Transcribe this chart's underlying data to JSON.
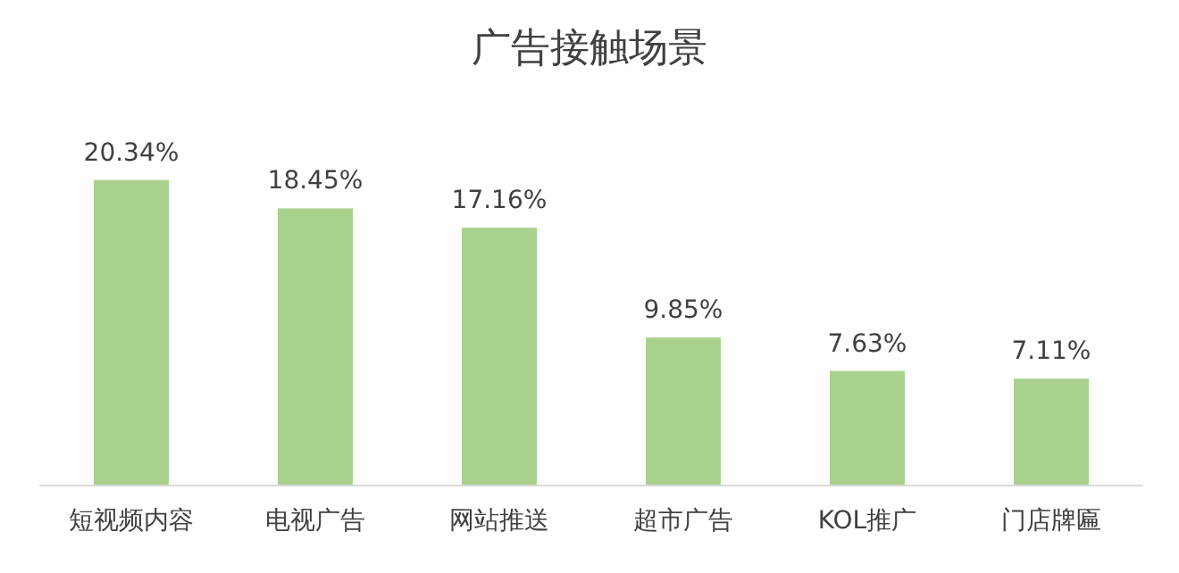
{
  "chart_data": {
    "type": "bar",
    "title": "广告接触场景",
    "categories": [
      "短视频内容",
      "电视广告",
      "网站推送",
      "超市广告",
      "KOL推广",
      "门店牌匾"
    ],
    "values": [
      20.34,
      18.45,
      17.16,
      9.85,
      7.63,
      7.11
    ],
    "value_labels": [
      "20.34%",
      "18.45%",
      "17.16%",
      "9.85%",
      "7.63%",
      "7.11%"
    ],
    "color": "#a9d18e"
  }
}
